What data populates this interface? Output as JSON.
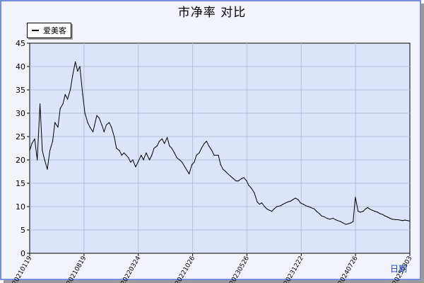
{
  "chart_data": {
    "type": "line",
    "title": "市净率  对比",
    "xlabel": "日期",
    "ylabel": "",
    "ylim": [
      0,
      45
    ],
    "yticks": [
      0,
      5,
      10,
      15,
      20,
      25,
      30,
      35,
      40,
      45
    ],
    "xtick_labels": [
      "20210119",
      "20210819",
      "20220324",
      "20221026",
      "20230526",
      "20231222",
      "20240726",
      "20250303"
    ],
    "grid": true,
    "legend_position": "top-left",
    "colors": {
      "plot_bg": "#dde3f8",
      "line": "#000000",
      "grid": "#b8c0dc",
      "frame_border": "#4a6bd6"
    },
    "series": [
      {
        "name": "爱美客",
        "x": [
          "2021-01-19",
          "2021-01-28",
          "2021-02-08",
          "2021-02-18",
          "2021-03-01",
          "2021-03-10",
          "2021-03-19",
          "2021-03-30",
          "2021-04-09",
          "2021-04-20",
          "2021-04-29",
          "2021-05-11",
          "2021-05-20",
          "2021-05-31",
          "2021-06-09",
          "2021-06-18",
          "2021-06-29",
          "2021-07-08",
          "2021-07-19",
          "2021-07-28",
          "2021-08-06",
          "2021-08-17",
          "2021-08-26",
          "2021-09-06",
          "2021-09-15",
          "2021-09-27",
          "2021-10-12",
          "2021-10-21",
          "2021-11-01",
          "2021-11-10",
          "2021-11-19",
          "2021-11-30",
          "2021-12-09",
          "2021-12-20",
          "2021-12-29",
          "2022-01-10",
          "2022-01-19",
          "2022-01-28",
          "2022-02-14",
          "2022-02-23",
          "2022-03-04",
          "2022-03-15",
          "2022-03-24",
          "2022-04-06",
          "2022-04-15",
          "2022-04-26",
          "2022-05-09",
          "2022-05-18",
          "2022-05-27",
          "2022-06-08",
          "2022-06-17",
          "2022-06-28",
          "2022-07-07",
          "2022-07-18",
          "2022-07-27",
          "2022-08-05",
          "2022-08-16",
          "2022-08-25",
          "2022-09-05",
          "2022-09-15",
          "2022-09-26",
          "2022-10-13",
          "2022-10-24",
          "2022-11-02",
          "2022-11-11",
          "2022-11-22",
          "2022-12-01",
          "2022-12-12",
          "2022-12-21",
          "2022-12-30",
          "2023-01-11",
          "2023-01-20",
          "2023-02-06",
          "2023-02-15",
          "2023-02-24",
          "2023-03-07",
          "2023-03-16",
          "2023-03-27",
          "2023-04-06",
          "2023-04-17",
          "2023-04-26",
          "2023-05-09",
          "2023-05-18",
          "2023-05-29",
          "2023-06-07",
          "2023-06-16",
          "2023-06-28",
          "2023-07-10",
          "2023-07-19",
          "2023-07-28",
          "2023-08-08",
          "2023-08-17",
          "2023-08-28",
          "2023-09-06",
          "2023-09-15",
          "2023-09-26",
          "2023-10-11",
          "2023-10-20",
          "2023-10-31",
          "2023-11-09",
          "2023-11-20",
          "2023-11-29",
          "2023-12-08",
          "2023-12-19",
          "2023-12-28",
          "2024-01-09",
          "2024-01-18",
          "2024-01-29",
          "2024-02-07",
          "2024-02-21",
          "2024-03-01",
          "2024-03-12",
          "2024-03-21",
          "2024-04-01",
          "2024-04-11",
          "2024-04-22",
          "2024-05-06",
          "2024-05-15",
          "2024-05-24",
          "2024-06-04",
          "2024-06-14",
          "2024-06-25",
          "2024-07-04",
          "2024-07-15",
          "2024-07-24",
          "2024-08-02",
          "2024-08-13",
          "2024-08-22",
          "2024-09-02",
          "2024-09-11",
          "2024-09-20",
          "2024-09-27",
          "2024-10-09",
          "2024-10-18",
          "2024-10-29",
          "2024-11-07",
          "2024-11-18",
          "2024-11-27",
          "2024-12-06",
          "2024-12-17",
          "2024-12-26",
          "2025-01-08",
          "2025-01-17",
          "2025-02-05",
          "2025-02-14",
          "2025-02-25",
          "2025-03-06"
        ],
        "values": [
          22.0,
          23.5,
          24.5,
          20.0,
          32.0,
          22.0,
          20.0,
          18.0,
          22.0,
          24.0,
          28.0,
          27.0,
          31.0,
          32.0,
          34.0,
          33.0,
          35.0,
          38.0,
          41.0,
          39.0,
          40.0,
          34.0,
          30.0,
          28.0,
          27.0,
          26.0,
          29.5,
          29.0,
          27.5,
          26.0,
          27.5,
          28.0,
          27.0,
          25.0,
          22.5,
          22.0,
          21.0,
          21.5,
          20.5,
          19.5,
          20.0,
          18.5,
          19.5,
          21.0,
          20.0,
          21.5,
          20.0,
          21.0,
          22.5,
          23.0,
          24.0,
          24.5,
          23.5,
          24.8,
          23.0,
          22.5,
          21.5,
          20.5,
          20.0,
          19.5,
          18.5,
          17.0,
          19.0,
          19.5,
          21.0,
          21.5,
          22.5,
          23.5,
          24.0,
          23.0,
          22.0,
          21.0,
          21.0,
          19.0,
          18.0,
          17.5,
          17.0,
          16.5,
          16.0,
          15.5,
          15.5,
          16.0,
          16.2,
          15.5,
          14.5,
          14.0,
          13.0,
          11.0,
          10.5,
          10.8,
          10.0,
          9.5,
          9.2,
          9.0,
          9.5,
          10.0,
          10.2,
          10.5,
          10.8,
          11.0,
          11.2,
          11.5,
          11.8,
          11.5,
          10.8,
          10.5,
          10.2,
          10.0,
          9.8,
          9.5,
          9.0,
          8.5,
          8.0,
          7.8,
          7.5,
          7.3,
          7.5,
          7.2,
          7.0,
          6.8,
          6.5,
          6.2,
          6.3,
          6.5,
          6.8,
          12.0,
          9.0,
          8.8,
          9.0,
          9.5,
          9.8,
          9.5,
          9.2,
          9.0,
          8.8,
          8.5,
          8.3,
          8.0,
          7.8,
          7.5,
          7.3,
          7.2,
          7.2,
          7.0,
          7.1,
          7.0,
          6.9
        ]
      }
    ]
  }
}
